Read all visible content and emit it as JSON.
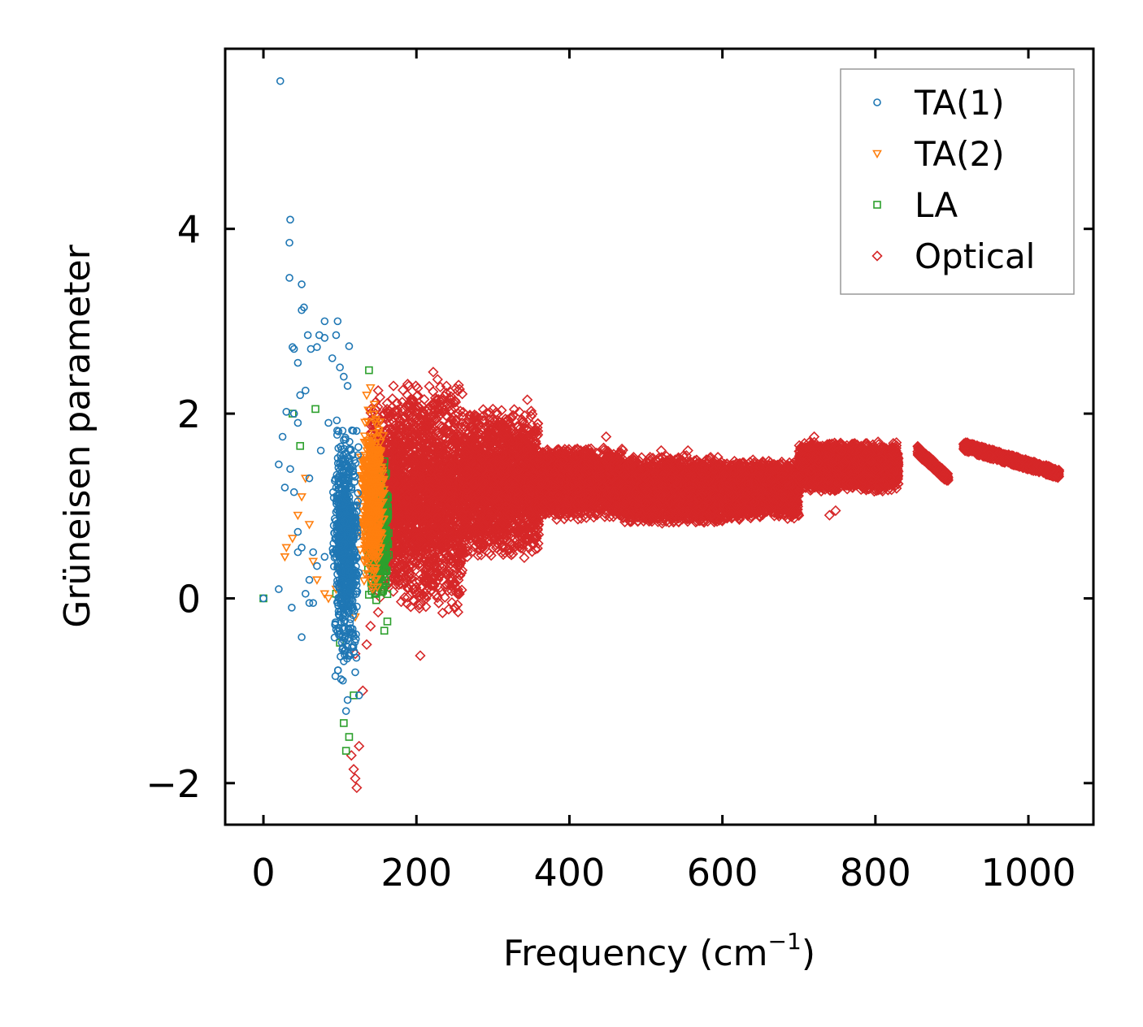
{
  "chart_data": {
    "type": "scatter",
    "title": "",
    "xlabel": "Frequency (cm",
    "xlabel_sup": "−1",
    "xlabel_close": ")",
    "ylabel": "Grüneisen parameter",
    "xlim": [
      -50,
      1085
    ],
    "ylim": [
      -2.45,
      5.95
    ],
    "xticks": [
      0,
      200,
      400,
      600,
      800,
      1000
    ],
    "xtick_labels": [
      "0",
      "200",
      "400",
      "600",
      "800",
      "1000"
    ],
    "yticks": [
      -2,
      0,
      2,
      4
    ],
    "ytick_labels": [
      "−2",
      "0",
      "2",
      "4"
    ],
    "legend_position": "top-right",
    "series": [
      {
        "name": "TA(1)",
        "marker": "circle",
        "color": "#1f77b4",
        "points": [
          [
            0,
            0
          ],
          [
            22,
            5.6
          ],
          [
            35,
            4.1
          ],
          [
            34,
            3.85
          ],
          [
            34,
            3.47
          ],
          [
            50,
            3.4
          ],
          [
            53,
            3.15
          ],
          [
            50,
            3.12
          ],
          [
            38,
            2.72
          ],
          [
            40,
            2.7
          ],
          [
            80,
            3.0
          ],
          [
            97,
            3.0
          ],
          [
            80,
            2.82
          ],
          [
            73,
            2.85
          ],
          [
            58,
            2.85
          ],
          [
            70,
            2.72
          ],
          [
            62,
            2.7
          ],
          [
            95,
            2.85
          ],
          [
            112,
            2.73
          ],
          [
            90,
            2.6
          ],
          [
            100,
            2.5
          ],
          [
            105,
            2.4
          ],
          [
            45,
            2.55
          ],
          [
            55,
            2.25
          ],
          [
            48,
            2.2
          ],
          [
            30,
            2.02
          ],
          [
            40,
            2.0
          ],
          [
            25,
            1.75
          ],
          [
            45,
            1.9
          ],
          [
            20,
            1.45
          ],
          [
            35,
            1.4
          ],
          [
            28,
            1.2
          ],
          [
            40,
            1.15
          ],
          [
            45,
            0.72
          ],
          [
            50,
            0.55
          ],
          [
            45,
            0.5
          ],
          [
            65,
            0.5
          ],
          [
            70,
            0.35
          ],
          [
            80,
            0.45
          ],
          [
            60,
            0.2
          ],
          [
            55,
            0.05
          ],
          [
            65,
            -0.05
          ],
          [
            60,
            -0.05
          ],
          [
            20,
            0.1
          ],
          [
            37,
            -0.1
          ],
          [
            50,
            -0.42
          ],
          [
            110,
            -1.1
          ],
          [
            108,
            -1.22
          ],
          [
            120,
            -0.8
          ],
          [
            125,
            -1.05
          ],
          [
            60,
            1.3
          ],
          [
            75,
            1.6
          ],
          [
            85,
            1.9
          ],
          [
            95,
            1.2
          ],
          [
            100,
            0.9
          ],
          [
            110,
            2.3
          ]
        ],
        "cluster": {
          "x": [
            90,
            125
          ],
          "y": [
            -1.0,
            2.2
          ],
          "count": 700
        }
      },
      {
        "name": "TA(2)",
        "marker": "triangle-down",
        "color": "#ff7f0e",
        "points": [
          [
            38,
            0.65
          ],
          [
            28,
            0.45
          ],
          [
            30,
            0.55
          ],
          [
            45,
            0.9
          ],
          [
            50,
            1.1
          ],
          [
            55,
            1.3
          ],
          [
            60,
            0.8
          ],
          [
            65,
            0.4
          ],
          [
            70,
            0.2
          ],
          [
            80,
            0.05
          ],
          [
            85,
            0.0
          ],
          [
            95,
            0.1
          ],
          [
            100,
            0.3
          ],
          [
            140,
            2.28
          ],
          [
            135,
            2.2
          ],
          [
            145,
            2.1
          ],
          [
            150,
            1.2
          ],
          [
            140,
            0.2
          ],
          [
            120,
            -0.2
          ]
        ],
        "cluster": {
          "x": [
            125,
            160
          ],
          "y": [
            -0.1,
            2.2
          ],
          "count": 500
        }
      },
      {
        "name": "LA",
        "marker": "square",
        "color": "#2ca02c",
        "points": [
          [
            0,
            0
          ],
          [
            38,
            2.0
          ],
          [
            48,
            1.65
          ],
          [
            68,
            2.05
          ],
          [
            95,
            0.05
          ],
          [
            100,
            -0.48
          ],
          [
            105,
            -1.35
          ],
          [
            108,
            -1.65
          ],
          [
            112,
            -1.5
          ],
          [
            118,
            -1.05
          ],
          [
            138,
            2.47
          ],
          [
            158,
            -0.35
          ],
          [
            162,
            -0.25
          ]
        ],
        "cluster": {
          "x": [
            135,
            165
          ],
          "y": [
            -0.2,
            1.7
          ],
          "count": 450
        }
      },
      {
        "name": "Optical",
        "marker": "diamond",
        "color": "#d62728",
        "points": [
          [
            205,
            -0.62
          ],
          [
            115,
            -1.7
          ],
          [
            118,
            -1.85
          ],
          [
            120,
            -1.95
          ],
          [
            122,
            -2.05
          ],
          [
            125,
            -1.6
          ],
          [
            130,
            -1.0
          ],
          [
            120,
            -0.6
          ],
          [
            135,
            -0.5
          ],
          [
            140,
            -0.3
          ],
          [
            150,
            -0.15
          ],
          [
            150,
            2.25
          ],
          [
            170,
            2.3
          ],
          [
            190,
            2.3
          ],
          [
            222,
            2.45
          ],
          [
            240,
            2.1
          ],
          [
            300,
            2.05
          ],
          [
            345,
            2.15
          ],
          [
            448,
            1.75
          ],
          [
            520,
            1.6
          ],
          [
            555,
            1.6
          ],
          [
            640,
            1.5
          ],
          [
            665,
            1.45
          ],
          [
            720,
            1.75
          ],
          [
            745,
            1.62
          ],
          [
            740,
            0.9
          ],
          [
            748,
            0.95
          ],
          [
            800,
            1.4
          ],
          [
            820,
            1.3
          ]
        ],
        "bands": [
          {
            "x": [
              140,
              180
            ],
            "ymin": 0.0,
            "ymax": 2.2
          },
          {
            "x": [
              180,
              260
            ],
            "ymin": -0.2,
            "ymax": 2.4
          },
          {
            "x": [
              260,
              360
            ],
            "ymin": 0.4,
            "ymax": 2.1
          },
          {
            "x": [
              360,
              470
            ],
            "ymin": 0.85,
            "ymax": 1.65
          },
          {
            "x": [
              470,
              600
            ],
            "ymin": 0.8,
            "ymax": 1.55
          },
          {
            "x": [
              600,
              700
            ],
            "ymin": 0.85,
            "ymax": 1.5
          },
          {
            "x": [
              700,
              830
            ],
            "ymin": 1.15,
            "ymax": 1.7
          }
        ],
        "segments": [
          {
            "x": [
              855,
              895
            ],
            "y": [
              1.6,
              1.3
            ]
          },
          {
            "x": [
              915,
              1040
            ],
            "y": [
              1.65,
              1.35
            ]
          }
        ]
      }
    ]
  }
}
